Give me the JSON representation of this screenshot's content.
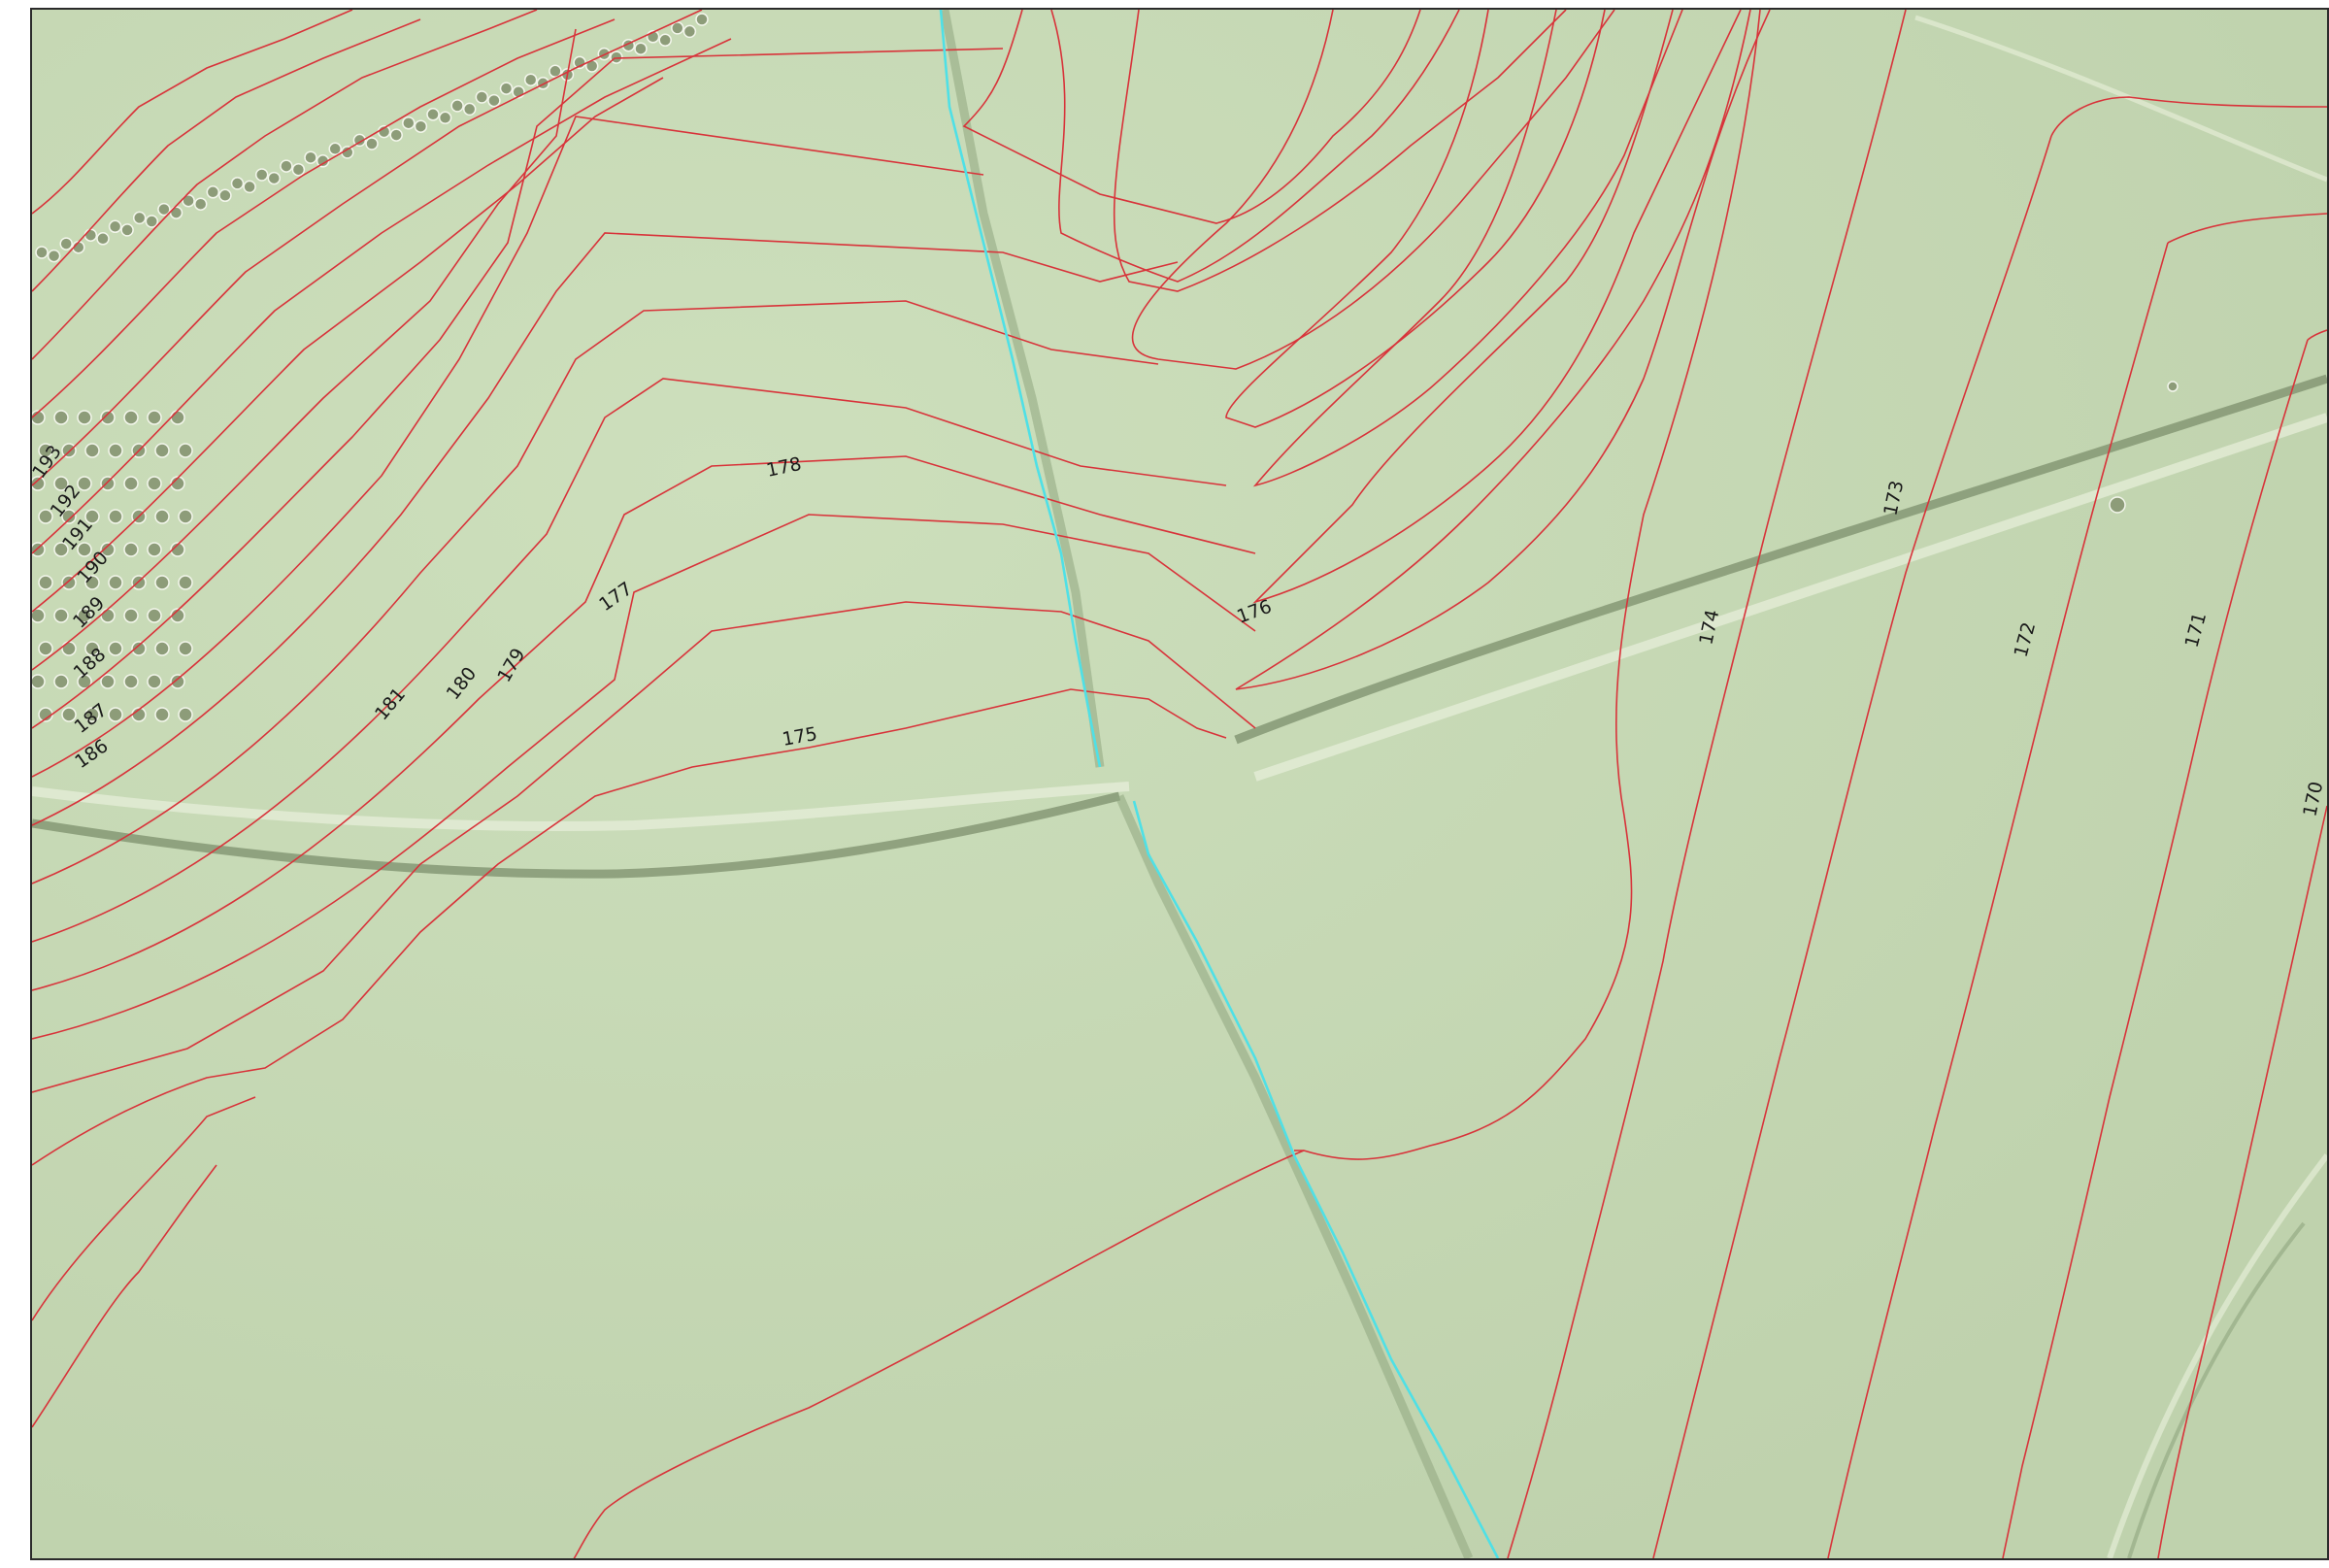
{
  "map": {
    "colors": {
      "background": "#c6d8b5",
      "contour": "#d8333a",
      "stream": "#4fe0e6",
      "frame": "#2b2b2b"
    },
    "contour_labels": [
      {
        "text": "193"
      },
      {
        "text": "192"
      },
      {
        "text": "191"
      },
      {
        "text": "190"
      },
      {
        "text": "189"
      },
      {
        "text": "188"
      },
      {
        "text": "187"
      },
      {
        "text": "186"
      },
      {
        "text": "181"
      },
      {
        "text": "180"
      },
      {
        "text": "179"
      },
      {
        "text": "178"
      },
      {
        "text": "177"
      },
      {
        "text": "176"
      },
      {
        "text": "175"
      },
      {
        "text": "174"
      },
      {
        "text": "173"
      },
      {
        "text": "172"
      },
      {
        "text": "171"
      },
      {
        "text": "170"
      }
    ]
  }
}
